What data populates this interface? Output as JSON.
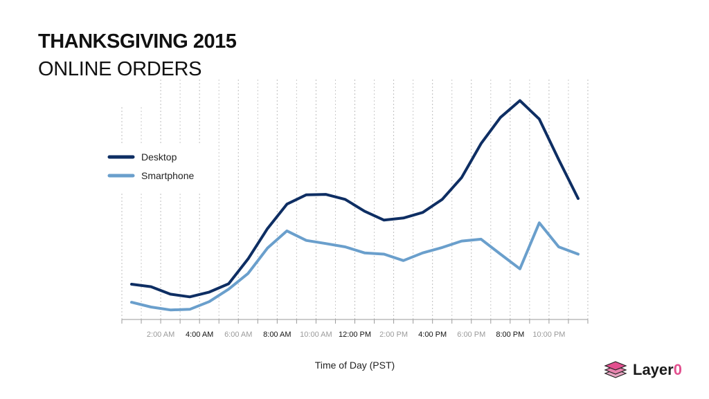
{
  "chart_data": {
    "type": "line",
    "title": "THANKSGIVING 2015",
    "subtitle": "ONLINE ORDERS",
    "xlabel": "Time of Day (PST)",
    "ylabel": "",
    "x": [
      "12:30 AM",
      "1:30 AM",
      "2:30 AM",
      "3:30 AM",
      "4:30 AM",
      "5:30 AM",
      "6:30 AM",
      "7:30 AM",
      "8:30 AM",
      "9:30 AM",
      "10:30 AM",
      "11:30 AM",
      "12:30 PM",
      "1:30 PM",
      "2:30 PM",
      "3:30 PM",
      "4:30 PM",
      "5:30 PM",
      "6:30 PM",
      "7:30 PM",
      "8:30 PM",
      "9:30 PM",
      "10:30 PM",
      "11:30 PM"
    ],
    "tick_labels": [
      {
        "label": "2:00 AM",
        "emphasis": false
      },
      {
        "label": "4:00 AM",
        "emphasis": true
      },
      {
        "label": "6:00 AM",
        "emphasis": false
      },
      {
        "label": "8:00 AM",
        "emphasis": true
      },
      {
        "label": "10:00 AM",
        "emphasis": false
      },
      {
        "label": "12:00 PM",
        "emphasis": true
      },
      {
        "label": "2:00 PM",
        "emphasis": false
      },
      {
        "label": "4:00 PM",
        "emphasis": true
      },
      {
        "label": "6:00 PM",
        "emphasis": false
      },
      {
        "label": "8:00 PM",
        "emphasis": true
      },
      {
        "label": "10:00 PM",
        "emphasis": false
      }
    ],
    "ylim": [
      0,
      100
    ],
    "grid": true,
    "legend_position": "left",
    "series": [
      {
        "name": "Desktop",
        "color": "#0e2e63",
        "values": [
          17,
          15.8,
          12.2,
          10.9,
          13.2,
          17.2,
          29.2,
          43.8,
          55.6,
          60.1,
          60.3,
          57.9,
          52.2,
          47.9,
          48.9,
          51.6,
          57.9,
          68.4,
          84.8,
          97.4,
          105.5,
          96.6,
          77.1,
          58.3
        ]
      },
      {
        "name": "Smartphone",
        "color": "#6a9fcc",
        "values": [
          8.3,
          6.0,
          4.6,
          4.9,
          8.6,
          14.6,
          22.2,
          34.4,
          42.7,
          38.1,
          36.6,
          35.0,
          32.1,
          31.5,
          28.4,
          32.1,
          34.7,
          37.8,
          38.7,
          31.5,
          24.4,
          46.6,
          35.0,
          31.5
        ]
      }
    ]
  },
  "brand": {
    "name_main": "Layer",
    "name_accent": "0",
    "accent_color": "#e2508f"
  }
}
